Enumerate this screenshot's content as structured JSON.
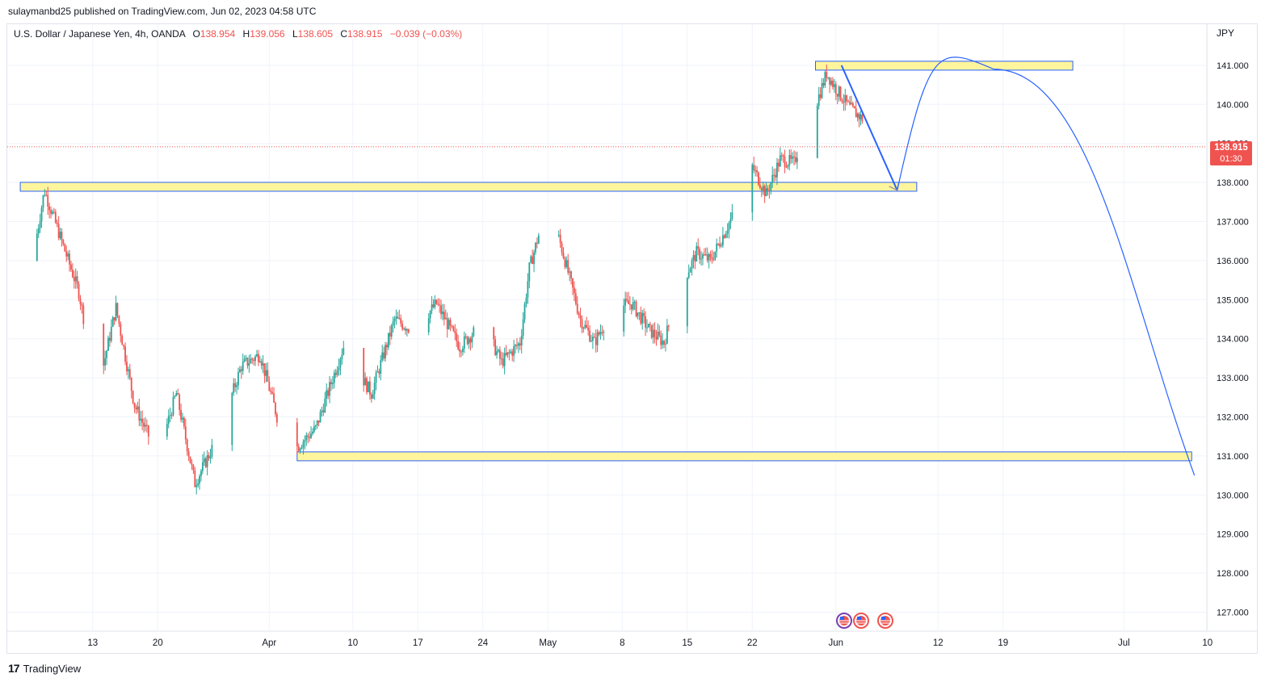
{
  "header": {
    "publish_text": "sulaymanbd25 published on TradingView.com, Jun 02, 2023 04:58 UTC"
  },
  "legend": {
    "symbol": "U.S. Dollar / Japanese Yen, 4h, OANDA",
    "o_key": "O",
    "o_val": "138.954",
    "h_key": "H",
    "h_val": "139.056",
    "l_key": "L",
    "l_val": "138.605",
    "c_key": "C",
    "c_val": "138.915",
    "change": "−0.039 (−0.03%)"
  },
  "price_axis": {
    "currency": "JPY",
    "current_price": "138.915",
    "countdown": "01:30"
  },
  "footer": {
    "logo_mark": "17",
    "brand": "TradingView"
  },
  "colors": {
    "up": "#26a69a",
    "down": "#ef5350",
    "zone_fill": "#fff59d",
    "zone_border": "#2962ff",
    "projection": "#2962ff",
    "grid": "#f0f3fa"
  },
  "chart_data": {
    "type": "candlestick",
    "ylim": [
      126.6,
      142.0
    ],
    "y_ticks": [
      "127.000",
      "128.000",
      "129.000",
      "130.000",
      "131.000",
      "132.000",
      "133.000",
      "134.000",
      "135.000",
      "136.000",
      "137.000",
      "138.000",
      "139.000",
      "140.000",
      "141.000"
    ],
    "x_tick_labels": [
      "13",
      "20",
      "Apr",
      "10",
      "17",
      "24",
      "May",
      "8",
      "15",
      "22",
      "Jun",
      "12",
      "19",
      "Jul",
      "10"
    ],
    "x_tick_days": [
      13,
      20,
      32,
      41,
      48,
      55,
      62,
      70,
      77,
      84,
      93,
      104,
      111,
      124,
      133
    ],
    "key_points": [
      {
        "day": 6.5,
        "price": 136.0
      },
      {
        "day": 7.8,
        "price": 137.8
      },
      {
        "day": 11.5,
        "price": 135.2
      },
      {
        "day": 13.5,
        "price": 132.6
      },
      {
        "day": 15.5,
        "price": 134.8
      },
      {
        "day": 17.5,
        "price": 132.3
      },
      {
        "day": 20.0,
        "price": 131.0
      },
      {
        "day": 22.0,
        "price": 132.6
      },
      {
        "day": 24.0,
        "price": 130.3
      },
      {
        "day": 26.5,
        "price": 131.5
      },
      {
        "day": 29.0,
        "price": 133.3
      },
      {
        "day": 31.0,
        "price": 133.6
      },
      {
        "day": 34.0,
        "price": 131.0
      },
      {
        "day": 37.0,
        "price": 131.7
      },
      {
        "day": 40.0,
        "price": 133.8
      },
      {
        "day": 43.0,
        "price": 132.6
      },
      {
        "day": 45.5,
        "price": 134.5
      },
      {
        "day": 47.5,
        "price": 134.2
      },
      {
        "day": 50.0,
        "price": 134.9
      },
      {
        "day": 52.5,
        "price": 133.8
      },
      {
        "day": 55.0,
        "price": 134.4
      },
      {
        "day": 57.0,
        "price": 133.4
      },
      {
        "day": 59.0,
        "price": 133.9
      },
      {
        "day": 60.0,
        "price": 135.8
      },
      {
        "day": 62.0,
        "price": 137.5
      },
      {
        "day": 63.5,
        "price": 136.3
      },
      {
        "day": 65.5,
        "price": 134.5
      },
      {
        "day": 67.0,
        "price": 133.9
      },
      {
        "day": 69.0,
        "price": 134.8
      },
      {
        "day": 71.0,
        "price": 134.9
      },
      {
        "day": 73.0,
        "price": 134.2
      },
      {
        "day": 74.5,
        "price": 133.9
      },
      {
        "day": 76.0,
        "price": 135.2
      },
      {
        "day": 78.0,
        "price": 136.2
      },
      {
        "day": 79.5,
        "price": 136.0
      },
      {
        "day": 82.0,
        "price": 137.2
      },
      {
        "day": 84.0,
        "price": 138.4
      },
      {
        "day": 85.5,
        "price": 137.7
      },
      {
        "day": 87.0,
        "price": 138.6
      },
      {
        "day": 88.5,
        "price": 138.5
      },
      {
        "day": 90.0,
        "price": 139.7
      },
      {
        "day": 91.0,
        "price": 140.1
      },
      {
        "day": 92.0,
        "price": 140.8
      },
      {
        "day": 93.0,
        "price": 140.4
      },
      {
        "day": 94.5,
        "price": 139.9
      },
      {
        "day": 96.0,
        "price": 139.6
      },
      {
        "day": 97.0,
        "price": 139.0
      },
      {
        "day": 97.7,
        "price": 138.9
      }
    ],
    "zones": [
      {
        "label": "resistance",
        "from_day": 90.8,
        "to_day": 118.5,
        "low": 140.8,
        "high": 141.0
      },
      {
        "label": "support-1",
        "from_day": 5.2,
        "to_day": 101.7,
        "low": 137.7,
        "high": 137.9
      },
      {
        "label": "support-2",
        "from_day": 35.0,
        "to_day": 131.3,
        "low": 130.8,
        "high": 131.0
      }
    ],
    "projection": [
      {
        "day": 93.6,
        "price": 141.0
      },
      {
        "day": 99.6,
        "price": 137.8
      },
      {
        "day": 110.0,
        "price": 140.9
      },
      {
        "day": 131.6,
        "price": 130.5
      }
    ],
    "current_price": 138.915
  }
}
